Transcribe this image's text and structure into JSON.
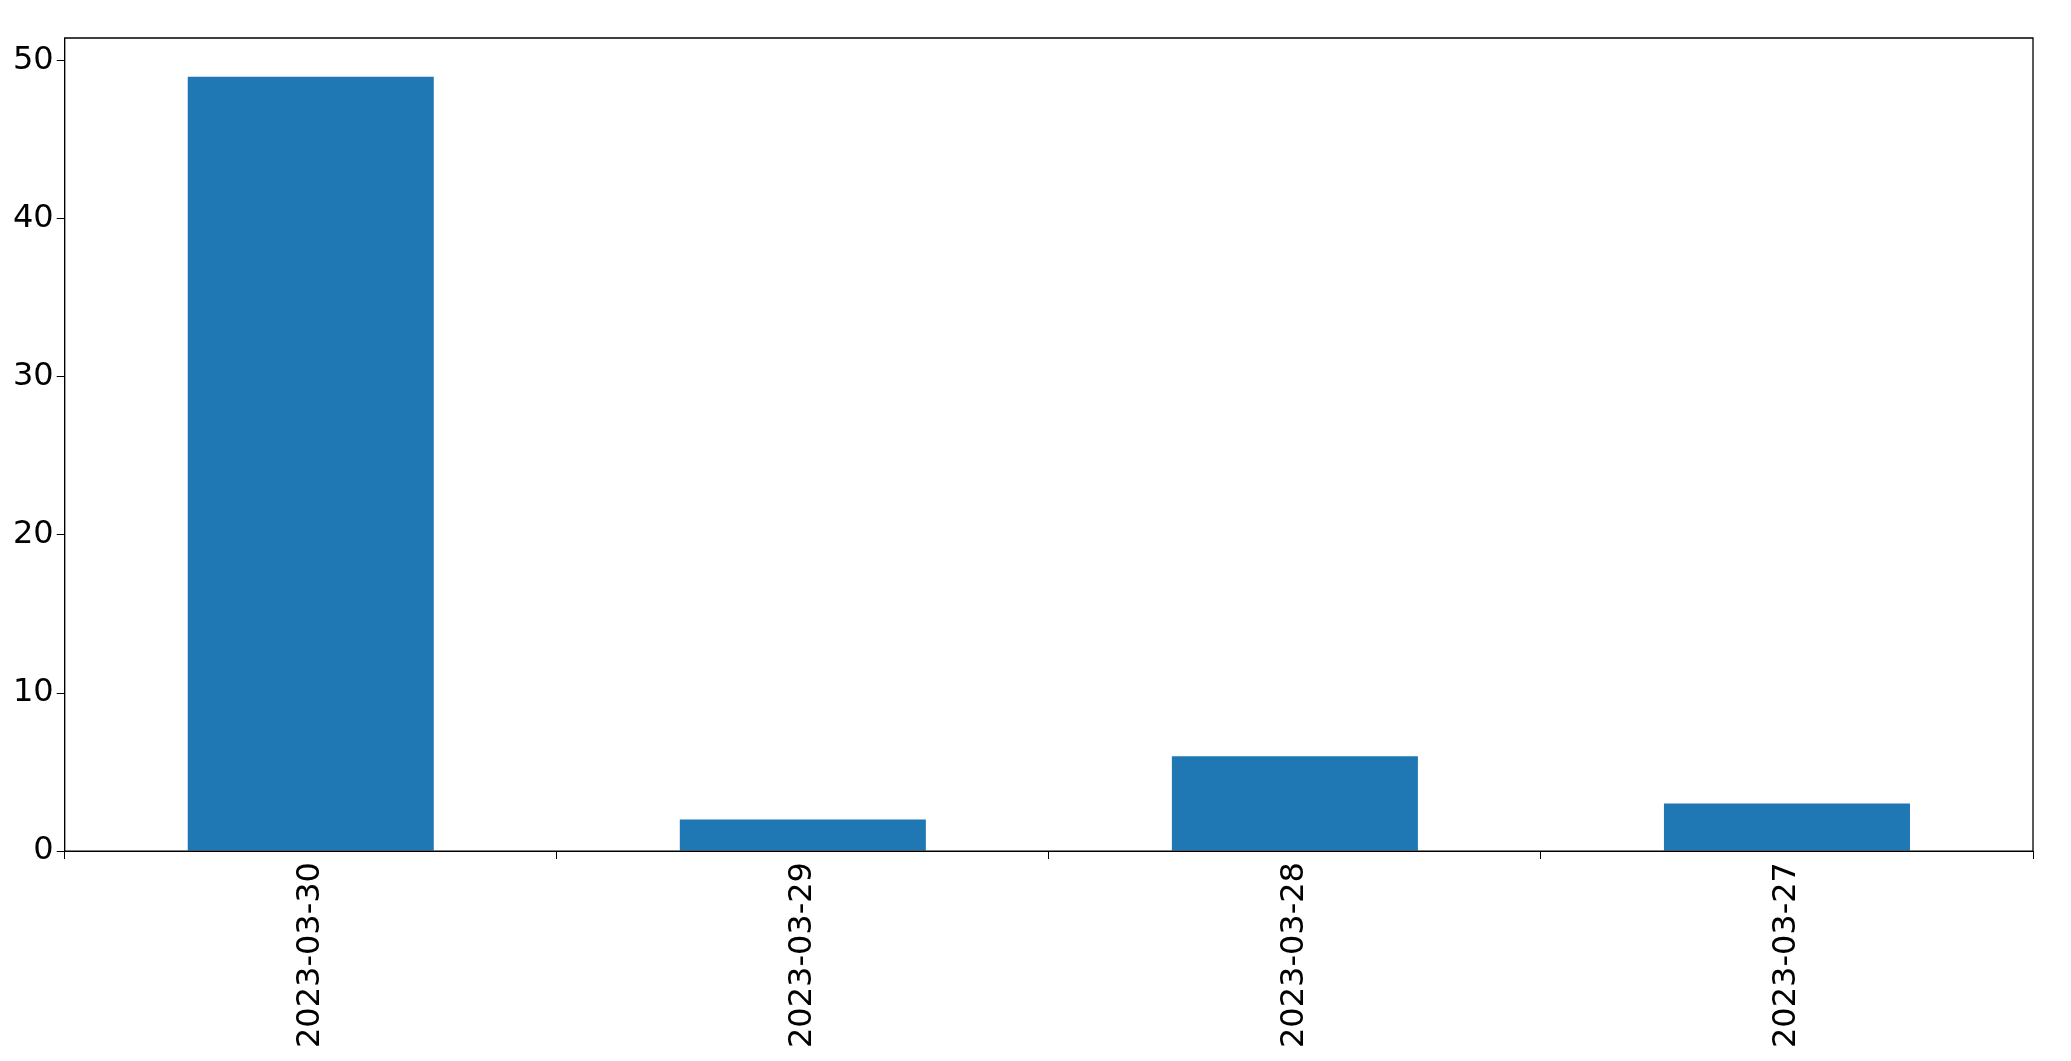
{
  "chart_data": {
    "type": "bar",
    "categories": [
      "2023-03-30",
      "2023-03-29",
      "2023-03-28",
      "2023-03-27"
    ],
    "values": [
      49,
      2,
      6,
      3
    ],
    "color": "#1f77b4",
    "ylim": [
      0,
      51.45
    ],
    "yticks": [
      0,
      10,
      20,
      30,
      40,
      50
    ],
    "grid": false,
    "legend": false
  }
}
